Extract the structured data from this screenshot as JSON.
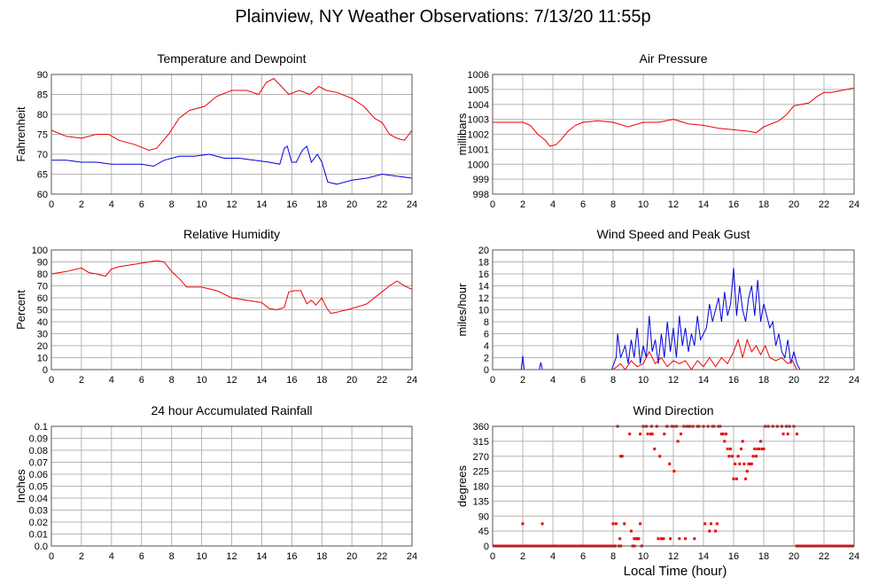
{
  "title": "Plainview, NY Weather Observations: 7/13/20 11:55p",
  "xlabel": "Local Time (hour)",
  "colors": {
    "red": "#ee0000",
    "blue": "#0000dd",
    "grid": "#b4b4b4",
    "frame": "#555555"
  },
  "chart_data": [
    {
      "type": "line",
      "title": "Temperature and Dewpoint",
      "ylabel": "Fahrenheit",
      "xlim": [
        0,
        24
      ],
      "ylim": [
        60,
        90
      ],
      "xticks": [
        0,
        2,
        4,
        6,
        8,
        10,
        12,
        14,
        16,
        18,
        20,
        22,
        24
      ],
      "yticks": [
        60,
        65,
        70,
        75,
        80,
        85,
        90
      ],
      "grid": true,
      "series": [
        {
          "color": "red",
          "x": [
            0,
            1,
            2,
            3,
            3.8,
            4.5,
            5.5,
            6.5,
            7,
            7.8,
            8.5,
            9.2,
            10.2,
            11,
            12,
            13,
            13.8,
            14.3,
            14.8,
            15.3,
            15.8,
            16.5,
            17.2,
            17.8,
            18.3,
            19,
            20,
            20.8,
            21.5,
            22,
            22.5,
            23,
            23.5,
            24
          ],
          "y": [
            76,
            74.5,
            74,
            75,
            75,
            73.5,
            72.5,
            71,
            71.5,
            75,
            79,
            81,
            82,
            84.5,
            86,
            86,
            85,
            88,
            89,
            87,
            85,
            86,
            85,
            87,
            86,
            85.5,
            84,
            82,
            79,
            78,
            75,
            74,
            73.5,
            76
          ]
        },
        {
          "color": "blue",
          "x": [
            0,
            1,
            2,
            3,
            4,
            5,
            6,
            6.8,
            7.5,
            8.5,
            9.5,
            10.5,
            11.5,
            12.5,
            13.5,
            14.5,
            15.2,
            15.5,
            15.7,
            16,
            16.3,
            16.7,
            17,
            17.3,
            17.7,
            18,
            18.4,
            19,
            20,
            21,
            22,
            23,
            24
          ],
          "y": [
            68.5,
            68.5,
            68,
            68,
            67.5,
            67.5,
            67.5,
            67,
            68.5,
            69.5,
            69.5,
            70,
            69,
            69,
            68.5,
            68,
            67.5,
            71.5,
            72,
            68,
            68,
            71,
            72,
            68,
            70,
            68,
            63,
            62.5,
            63.5,
            64,
            65,
            64.5,
            64
          ]
        }
      ]
    },
    {
      "type": "line",
      "title": "Air Pressure",
      "ylabel": "millibars",
      "xlim": [
        0,
        24
      ],
      "ylim": [
        998,
        1006
      ],
      "xticks": [
        0,
        2,
        4,
        6,
        8,
        10,
        12,
        14,
        16,
        18,
        20,
        22,
        24
      ],
      "yticks": [
        998,
        999,
        1000,
        1001,
        1002,
        1003,
        1004,
        1005,
        1006
      ],
      "grid": true,
      "series": [
        {
          "color": "red",
          "x": [
            0,
            1,
            2,
            2.5,
            3,
            3.5,
            3.8,
            4.2,
            4.6,
            5,
            5.5,
            6,
            7,
            8,
            9,
            10,
            11,
            12,
            13,
            14,
            15,
            16,
            17,
            17.5,
            18,
            19,
            19.5,
            20,
            20.5,
            21,
            21.5,
            22,
            22.5,
            23,
            24
          ],
          "y": [
            1002.8,
            1002.8,
            1002.8,
            1002.6,
            1002,
            1001.6,
            1001.2,
            1001.3,
            1001.7,
            1002.2,
            1002.6,
            1002.8,
            1002.9,
            1002.8,
            1002.5,
            1002.8,
            1002.8,
            1003,
            1002.7,
            1002.6,
            1002.4,
            1002.3,
            1002.2,
            1002.1,
            1002.5,
            1002.9,
            1003.3,
            1003.9,
            1004,
            1004.1,
            1004.5,
            1004.8,
            1004.8,
            1004.9,
            1005.1
          ]
        }
      ]
    },
    {
      "type": "line",
      "title": "Relative Humidity",
      "ylabel": "Percent",
      "xlim": [
        0,
        24
      ],
      "ylim": [
        0,
        100
      ],
      "xticks": [
        0,
        2,
        4,
        6,
        8,
        10,
        12,
        14,
        16,
        18,
        20,
        22,
        24
      ],
      "yticks": [
        0,
        10,
        20,
        30,
        40,
        50,
        60,
        70,
        80,
        90,
        100
      ],
      "grid": true,
      "series": [
        {
          "color": "red",
          "x": [
            0,
            1,
            2,
            2.5,
            3,
            3.6,
            4,
            4.5,
            5.5,
            6.5,
            7,
            7.5,
            8,
            8.6,
            9,
            10,
            11,
            12,
            13,
            14,
            14.5,
            15,
            15.5,
            15.8,
            16.2,
            16.6,
            17,
            17.3,
            17.6,
            18,
            18.3,
            18.6,
            19,
            20,
            21,
            21.5,
            22,
            22.5,
            23,
            23.5,
            24
          ],
          "y": [
            80,
            82,
            85,
            81,
            80,
            78,
            84,
            86,
            88,
            90,
            91,
            90,
            82,
            75,
            69,
            69,
            66,
            60,
            58,
            56,
            51,
            50,
            52,
            65,
            66,
            66,
            55,
            58,
            54,
            60,
            52,
            47,
            48,
            51,
            55,
            60,
            65,
            70,
            74,
            70,
            67
          ]
        }
      ]
    },
    {
      "type": "line",
      "title": "Wind Speed and Peak Gust",
      "ylabel": "miles/hour",
      "xlim": [
        0,
        24
      ],
      "ylim": [
        0,
        20
      ],
      "xticks": [
        0,
        2,
        4,
        6,
        8,
        10,
        12,
        14,
        16,
        18,
        20,
        22,
        24
      ],
      "yticks": [
        0,
        2,
        4,
        6,
        8,
        10,
        12,
        14,
        16,
        18,
        20
      ],
      "grid": true,
      "series": [
        {
          "color": "blue",
          "x": [
            0,
            1.9,
            2,
            2.1,
            3.1,
            3.2,
            3.3,
            7.9,
            8.2,
            8.3,
            8.5,
            8.8,
            9,
            9.2,
            9.4,
            9.6,
            9.8,
            10,
            10.2,
            10.4,
            10.6,
            10.8,
            11,
            11.2,
            11.4,
            11.6,
            11.8,
            12,
            12.2,
            12.4,
            12.6,
            12.8,
            13,
            13.2,
            13.4,
            13.6,
            13.8,
            14,
            14.2,
            14.4,
            14.6,
            14.8,
            15,
            15.2,
            15.4,
            15.6,
            15.8,
            16,
            16.2,
            16.4,
            16.6,
            16.8,
            17,
            17.2,
            17.4,
            17.6,
            17.8,
            18,
            18.2,
            18.4,
            18.6,
            18.8,
            19,
            19.2,
            19.4,
            19.6,
            19.8,
            20,
            20.2,
            20.4,
            24
          ],
          "y": [
            0,
            0,
            2.3,
            0,
            0,
            1.2,
            0,
            0,
            2,
            6,
            2,
            4,
            1,
            5,
            2,
            7,
            1,
            4,
            2,
            9,
            3,
            5,
            1,
            6,
            2,
            8,
            3,
            7,
            2,
            9,
            4,
            7,
            3,
            6,
            4,
            9,
            5,
            6,
            7,
            11,
            8,
            10,
            12,
            8,
            13,
            9,
            11,
            17,
            9,
            14,
            10,
            8,
            12,
            14,
            9,
            15,
            8,
            11,
            9,
            7,
            8,
            4,
            6,
            3,
            2,
            5,
            1,
            3,
            1,
            0,
            0
          ]
        },
        {
          "color": "red",
          "x": [
            0,
            8,
            8.5,
            8.8,
            9.2,
            9.6,
            10,
            10.4,
            10.8,
            11.2,
            11.6,
            12,
            12.4,
            12.8,
            13.2,
            13.6,
            14,
            14.4,
            14.8,
            15.2,
            15.6,
            16,
            16.3,
            16.6,
            16.9,
            17.2,
            17.5,
            17.8,
            18.1,
            18.4,
            18.8,
            19.2,
            19.6,
            19.9,
            20.2,
            24
          ],
          "y": [
            0,
            0,
            1,
            0,
            1.5,
            0.5,
            1,
            3,
            1,
            2,
            0.5,
            1.5,
            1,
            1.5,
            0,
            1.5,
            0.5,
            2,
            0.5,
            2,
            1,
            3,
            5,
            2,
            5,
            3,
            4,
            2.5,
            4,
            2,
            1.5,
            2,
            1,
            1.5,
            0,
            0
          ]
        }
      ]
    },
    {
      "type": "line",
      "title": "24 hour Accumulated Rainfall",
      "ylabel": "Inches",
      "xlim": [
        0,
        24
      ],
      "ylim": [
        0,
        0.1
      ],
      "xticks": [
        0,
        2,
        4,
        6,
        8,
        10,
        12,
        14,
        16,
        18,
        20,
        22,
        24
      ],
      "yticks": [
        0.0,
        0.01,
        0.02,
        0.03,
        0.04,
        0.05,
        0.06,
        0.07,
        0.08,
        0.09,
        0.1
      ],
      "ytick_labels": [
        "0.0",
        "0.01",
        "0.02",
        "0.03",
        "0.04",
        "0.05",
        "0.06",
        "0.07",
        "0.08",
        "0.09",
        "0.1"
      ],
      "grid": true,
      "series": [
        {
          "color": "red",
          "x": [
            0,
            24
          ],
          "y": [
            0,
            0
          ]
        }
      ]
    },
    {
      "type": "scatter",
      "title": "Wind Direction",
      "ylabel": "degrees",
      "xlim": [
        0,
        24
      ],
      "ylim": [
        0,
        360
      ],
      "xticks": [
        0,
        2,
        4,
        6,
        8,
        10,
        12,
        14,
        16,
        18,
        20,
        22,
        24
      ],
      "yticks": [
        0,
        45,
        90,
        135,
        180,
        225,
        270,
        315,
        360
      ],
      "grid": true,
      "calm_segments": [
        [
          0,
          8.1
        ],
        [
          8.3,
          8.6
        ],
        [
          9.3,
          9.5
        ],
        [
          20.1,
          24
        ]
      ],
      "series": [
        {
          "color": "red",
          "x": [
            2,
            3.3,
            8,
            8.2,
            8.3,
            8.45,
            8.6,
            8.75,
            9.2,
            9.4,
            9.6,
            9.7,
            9.8,
            9.9,
            10,
            10.2,
            10.5,
            10.6,
            11,
            11.2,
            11.4,
            11.6,
            11.8,
            12,
            12.2,
            12.4,
            12.8,
            13,
            13.3,
            13.6,
            14,
            14.3,
            14.5,
            14.7,
            14.9,
            15.1,
            15.3,
            15.5,
            15.7,
            15.9,
            16.1,
            16.3,
            16.5,
            16.7,
            16.9,
            17.1,
            17.3,
            17.5,
            17.7,
            17.9,
            18.1,
            18.3,
            18.6,
            18.9,
            19.2,
            19.5,
            19.7,
            20,
            20.2,
            8.15,
            8.5,
            9.1,
            9.3,
            9.55,
            9.8,
            10,
            10.3,
            10.55,
            10.75,
            10.9,
            11.1,
            11.35,
            11.55,
            11.75,
            11.9,
            12.05,
            12.3,
            12.5,
            12.7,
            12.9,
            13.1,
            13.4,
            13.7,
            14.1,
            14.4,
            14.6,
            14.8,
            15,
            15.2,
            15.4,
            15.6,
            15.8,
            16,
            16.2,
            16.4,
            16.6,
            16.8,
            17,
            17.2,
            17.4,
            17.6,
            17.8,
            18,
            19.3,
            19.6
          ],
          "y": [
            67,
            67,
            67,
            67,
            360,
            22,
            270,
            67,
            45,
            22,
            22,
            22,
            67,
            0,
            360,
            360,
            337,
            337,
            22,
            22,
            337,
            360,
            22,
            360,
            360,
            22,
            22,
            360,
            360,
            360,
            360,
            360,
            67,
            360,
            67,
            360,
            337,
            337,
            270,
            270,
            247,
            270,
            292,
            247,
            225,
            247,
            270,
            270,
            292,
            292,
            360,
            360,
            360,
            360,
            360,
            360,
            360,
            360,
            337,
            0,
            270,
            337,
            0,
            22,
            337,
            360,
            337,
            360,
            292,
            360,
            270,
            22,
            360,
            247,
            360,
            225,
            315,
            337,
            360,
            360,
            360,
            22,
            360,
            67,
            45,
            360,
            45,
            360,
            337,
            315,
            292,
            292,
            202,
            202,
            247,
            315,
            202,
            247,
            247,
            292,
            292,
            315,
            292,
            337,
            337
          ]
        }
      ]
    }
  ]
}
